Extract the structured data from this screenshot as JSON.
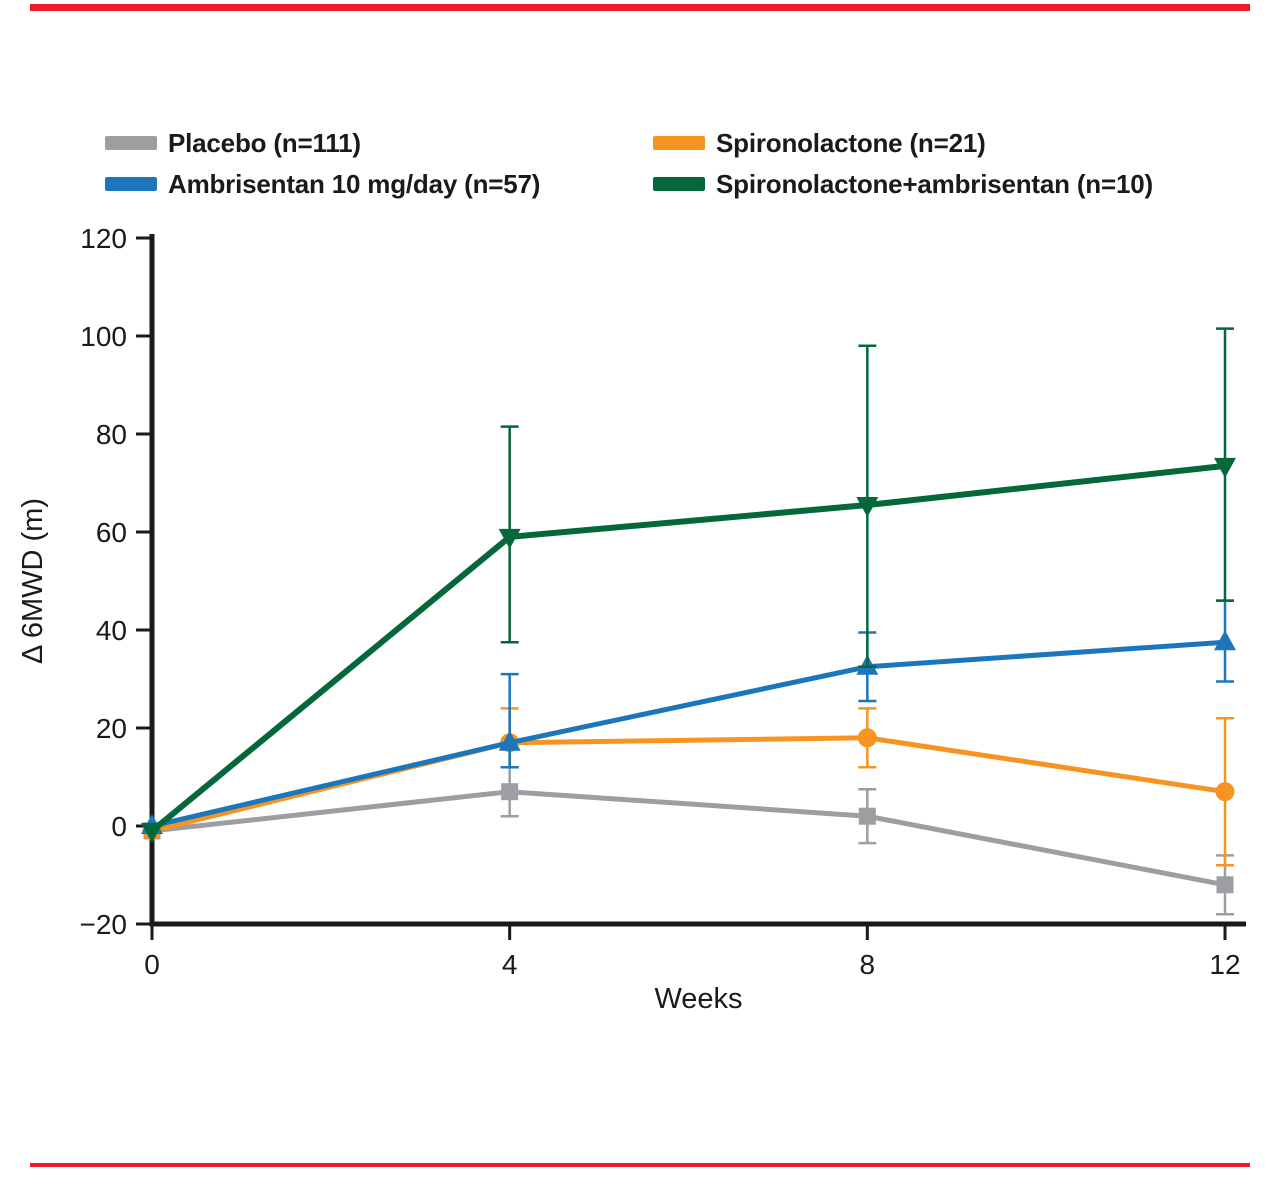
{
  "page": {
    "top_rule_color": "#ec1c2d",
    "bottom_rule_color": "#ec1c2d",
    "background": "#ffffff"
  },
  "chart_data": {
    "type": "line",
    "title": "",
    "xlabel": "Weeks",
    "ylabel": "Δ 6MWD (m)",
    "x": [
      0,
      4,
      8,
      12
    ],
    "xticks": [
      0,
      4,
      8,
      12
    ],
    "yticks": [
      -20,
      0,
      20,
      40,
      60,
      80,
      100,
      120
    ],
    "xlim": [
      0,
      12.3
    ],
    "ylim": [
      -20,
      120
    ],
    "grid": false,
    "legend_position": "top",
    "axis_color": "#1a1a1a",
    "draw_order": [
      0,
      2,
      1,
      3
    ],
    "series": [
      {
        "id": "placebo",
        "name": "Placebo (n=111)",
        "color": "#9c9ea1",
        "marker": "square",
        "line_width": 5,
        "values": [
          -1,
          7,
          2,
          -12
        ],
        "err_up": [
          0,
          5,
          5.5,
          6
        ],
        "err_down": [
          0,
          5,
          5.5,
          6
        ]
      },
      {
        "id": "ambrisentan",
        "name": "Ambrisentan 10 mg/day (n=57)",
        "color": "#1b76bc",
        "marker": "triangle-up",
        "line_width": 5,
        "values": [
          0,
          17,
          32.5,
          37.5
        ],
        "err_up": [
          0,
          14,
          7,
          8.5
        ],
        "err_down": [
          0,
          5,
          7,
          8
        ]
      },
      {
        "id": "spironolactone",
        "name": "Spironolactone (n=21)",
        "color": "#f79421",
        "marker": "circle",
        "line_width": 5,
        "values": [
          -1,
          17,
          18,
          7
        ],
        "err_up": [
          0,
          7,
          6,
          15
        ],
        "err_down": [
          0,
          5,
          6,
          15
        ]
      },
      {
        "id": "combo",
        "name": "Spironolactone+ambrisentan (n=10)",
        "color": "#04683a",
        "marker": "triangle-down",
        "line_width": 6,
        "values": [
          -1,
          59,
          65.5,
          73.5
        ],
        "err_up": [
          0,
          22.5,
          32.5,
          28
        ],
        "err_down": [
          0,
          21.5,
          33,
          27.5
        ]
      }
    ]
  }
}
